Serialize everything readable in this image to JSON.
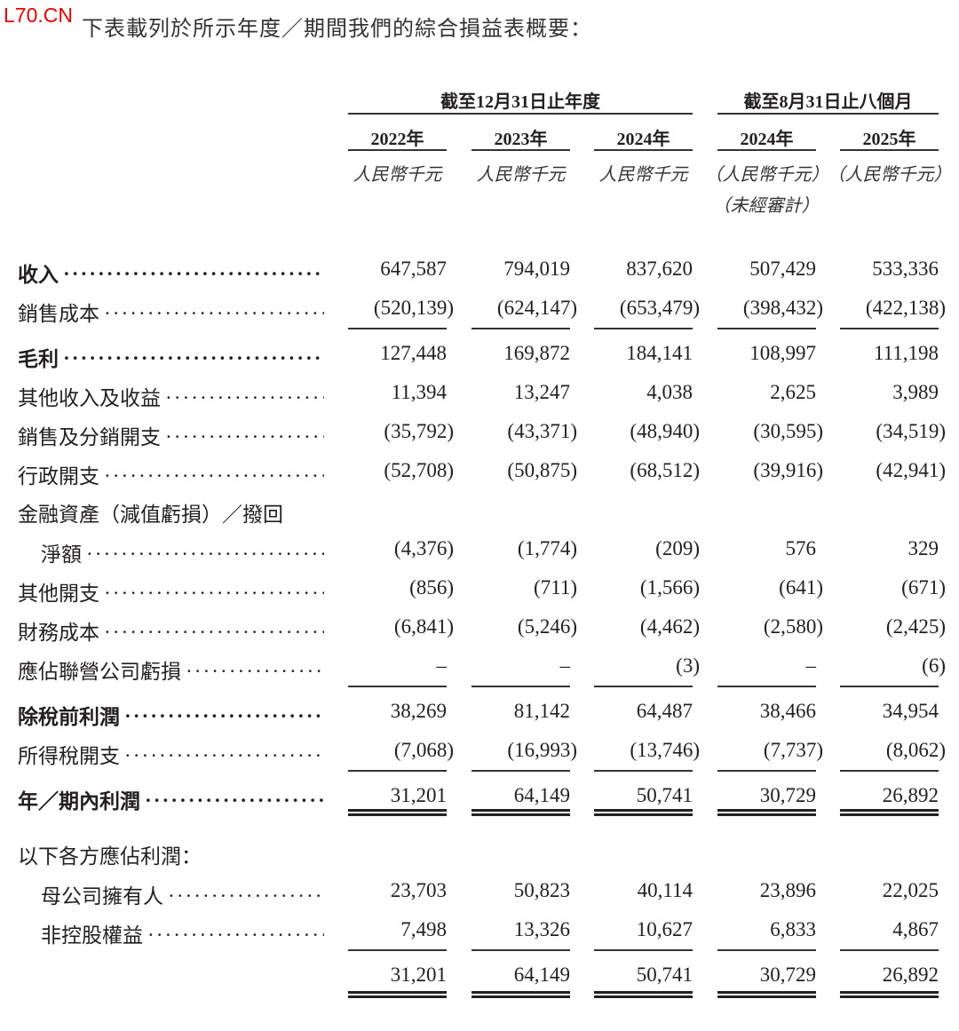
{
  "watermark": "L70.CN",
  "intro": "下表載列於所示年度／期間我們的綜合損益表概要：",
  "headers": {
    "group_year": "截至12月31日止年度",
    "group_period": "截至8月31日止八個月",
    "columns": [
      "2022年",
      "2023年",
      "2024年",
      "2024年",
      "2025年"
    ],
    "units": [
      "人民幣千元",
      "人民幣千元",
      "人民幣千元",
      "（人民幣千元）",
      "（人民幣千元）"
    ],
    "unaudited": "（未經審計）"
  },
  "rows": [
    {
      "label": "收入",
      "bold": true,
      "values": [
        "647,587",
        "794,019",
        "837,620",
        "507,429",
        "533,336"
      ]
    },
    {
      "label": "銷售成本",
      "values": [
        "(520,139)",
        "(624,147)",
        "(653,479)",
        "(398,432)",
        "(422,138)"
      ],
      "rule": "single"
    },
    {
      "label": "毛利",
      "bold": true,
      "values": [
        "127,448",
        "169,872",
        "184,141",
        "108,997",
        "111,198"
      ]
    },
    {
      "label": "其他收入及收益",
      "values": [
        "11,394",
        "13,247",
        "4,038",
        "2,625",
        "3,989"
      ]
    },
    {
      "label": "銷售及分銷開支",
      "values": [
        "(35,792)",
        "(43,371)",
        "(48,940)",
        "(30,595)",
        "(34,519)"
      ]
    },
    {
      "label": "行政開支",
      "values": [
        "(52,708)",
        "(50,875)",
        "(68,512)",
        "(39,916)",
        "(42,941)"
      ]
    },
    {
      "label": "金融資產（減值虧損）／撥回",
      "nodots": true,
      "values": []
    },
    {
      "label": "淨額",
      "indent": true,
      "values": [
        "(4,376)",
        "(1,774)",
        "(209)",
        "576",
        "329"
      ]
    },
    {
      "label": "其他開支",
      "values": [
        "(856)",
        "(711)",
        "(1,566)",
        "(641)",
        "(671)"
      ]
    },
    {
      "label": "財務成本",
      "values": [
        "(6,841)",
        "(5,246)",
        "(4,462)",
        "(2,580)",
        "(2,425)"
      ]
    },
    {
      "label": "應佔聯營公司虧損",
      "values": [
        "–",
        "–",
        "(3)",
        "–",
        "(6)"
      ],
      "rule": "single"
    },
    {
      "label": "除稅前利潤",
      "bold": true,
      "values": [
        "38,269",
        "81,142",
        "64,487",
        "38,466",
        "34,954"
      ]
    },
    {
      "label": "所得稅開支",
      "values": [
        "(7,068)",
        "(16,993)",
        "(13,746)",
        "(7,737)",
        "(8,062)"
      ],
      "rule": "single"
    },
    {
      "label": "年／期內利潤",
      "bold": true,
      "values": [
        "31,201",
        "64,149",
        "50,741",
        "30,729",
        "26,892"
      ],
      "rule": "double"
    },
    {
      "label": "以下各方應佔利潤：",
      "nodots": true,
      "values": []
    },
    {
      "label": "母公司擁有人",
      "indent": true,
      "values": [
        "23,703",
        "50,823",
        "40,114",
        "23,896",
        "22,025"
      ]
    },
    {
      "label": "非控股權益",
      "indent": true,
      "values": [
        "7,498",
        "13,326",
        "10,627",
        "6,833",
        "4,867"
      ],
      "rule": "single"
    },
    {
      "label": "",
      "nodots": true,
      "values": [
        "31,201",
        "64,149",
        "50,741",
        "30,729",
        "26,892"
      ],
      "rule": "double"
    }
  ]
}
